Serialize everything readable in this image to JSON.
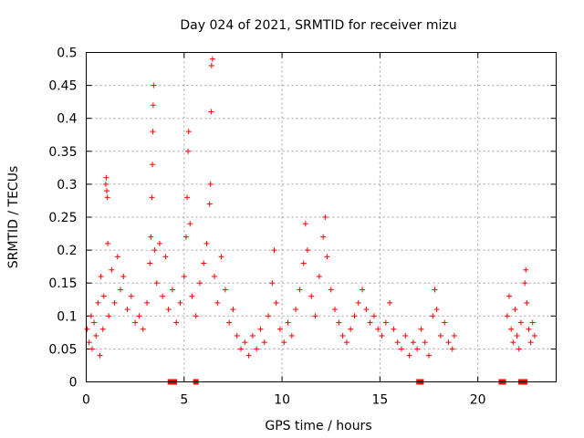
{
  "chart_data": {
    "type": "scatter",
    "title": "Day 024 of 2021, SRMTID for receiver mizu",
    "xlabel": "GPS time / hours",
    "ylabel": "SRMTID / TECUs",
    "xlim": [
      0,
      24
    ],
    "ylim": [
      0,
      0.5
    ],
    "x_ticks": [
      0,
      5,
      10,
      15,
      20
    ],
    "y_ticks": [
      0,
      0.05,
      0.1,
      0.15,
      0.2,
      0.25,
      0.3,
      0.35,
      0.4,
      0.45,
      0.5
    ],
    "x_tick_labels": [
      "0",
      "5",
      "10",
      "15",
      "20"
    ],
    "y_tick_labels": [
      "0",
      "0.05",
      "0.1",
      "0.15",
      "0.2",
      "0.25",
      "0.3",
      "0.35",
      "0.4",
      "0.45",
      "0.5"
    ],
    "grid": true,
    "marker": "+",
    "color": "#ff0000",
    "series": [
      {
        "name": "SRMTID",
        "points": [
          [
            0.05,
            0.08
          ],
          [
            0.15,
            0.06
          ],
          [
            0.25,
            0.1
          ],
          [
            0.3,
            0.05
          ],
          [
            0.4,
            0.09
          ],
          [
            0.5,
            0.07
          ],
          [
            0.6,
            0.12
          ],
          [
            0.7,
            0.04
          ],
          [
            0.75,
            0.16
          ],
          [
            0.85,
            0.08
          ],
          [
            0.9,
            0.13
          ],
          [
            1.0,
            0.3
          ],
          [
            1.02,
            0.31
          ],
          [
            1.05,
            0.29
          ],
          [
            1.08,
            0.28
          ],
          [
            1.1,
            0.21
          ],
          [
            1.15,
            0.1
          ],
          [
            1.3,
            0.17
          ],
          [
            1.45,
            0.12
          ],
          [
            1.6,
            0.19
          ],
          [
            1.75,
            0.14
          ],
          [
            1.9,
            0.16
          ],
          [
            2.1,
            0.11
          ],
          [
            2.3,
            0.13
          ],
          [
            2.5,
            0.09
          ],
          [
            2.7,
            0.1
          ],
          [
            2.9,
            0.08
          ],
          [
            3.1,
            0.12
          ],
          [
            3.25,
            0.18
          ],
          [
            3.3,
            0.22
          ],
          [
            3.35,
            0.28
          ],
          [
            3.38,
            0.33
          ],
          [
            3.4,
            0.38
          ],
          [
            3.42,
            0.42
          ],
          [
            3.44,
            0.45
          ],
          [
            3.5,
            0.2
          ],
          [
            3.6,
            0.15
          ],
          [
            3.75,
            0.21
          ],
          [
            3.9,
            0.13
          ],
          [
            4.05,
            0.19
          ],
          [
            4.2,
            0.11
          ],
          [
            4.4,
            0.14
          ],
          [
            4.6,
            0.09
          ],
          [
            4.8,
            0.12
          ],
          [
            5.0,
            0.16
          ],
          [
            5.1,
            0.22
          ],
          [
            5.15,
            0.28
          ],
          [
            5.2,
            0.35
          ],
          [
            5.23,
            0.38
          ],
          [
            5.3,
            0.24
          ],
          [
            5.4,
            0.13
          ],
          [
            5.6,
            0.1
          ],
          [
            5.8,
            0.15
          ],
          [
            6.0,
            0.18
          ],
          [
            6.15,
            0.21
          ],
          [
            6.3,
            0.27
          ],
          [
            6.35,
            0.3
          ],
          [
            6.38,
            0.41
          ],
          [
            6.4,
            0.48
          ],
          [
            6.45,
            0.49
          ],
          [
            6.55,
            0.16
          ],
          [
            6.7,
            0.12
          ],
          [
            6.9,
            0.19
          ],
          [
            7.1,
            0.14
          ],
          [
            7.3,
            0.09
          ],
          [
            7.5,
            0.11
          ],
          [
            7.7,
            0.07
          ],
          [
            7.9,
            0.05
          ],
          [
            8.1,
            0.06
          ],
          [
            8.3,
            0.04
          ],
          [
            8.5,
            0.07
          ],
          [
            8.7,
            0.05
          ],
          [
            8.9,
            0.08
          ],
          [
            9.1,
            0.06
          ],
          [
            9.3,
            0.1
          ],
          [
            9.5,
            0.15
          ],
          [
            9.6,
            0.2
          ],
          [
            9.7,
            0.12
          ],
          [
            9.9,
            0.08
          ],
          [
            10.1,
            0.06
          ],
          [
            10.3,
            0.09
          ],
          [
            10.5,
            0.07
          ],
          [
            10.7,
            0.11
          ],
          [
            10.9,
            0.14
          ],
          [
            11.1,
            0.18
          ],
          [
            11.2,
            0.24
          ],
          [
            11.3,
            0.2
          ],
          [
            11.5,
            0.13
          ],
          [
            11.7,
            0.1
          ],
          [
            11.9,
            0.16
          ],
          [
            12.1,
            0.22
          ],
          [
            12.2,
            0.25
          ],
          [
            12.3,
            0.19
          ],
          [
            12.5,
            0.14
          ],
          [
            12.7,
            0.11
          ],
          [
            12.9,
            0.09
          ],
          [
            13.1,
            0.07
          ],
          [
            13.3,
            0.06
          ],
          [
            13.5,
            0.08
          ],
          [
            13.7,
            0.1
          ],
          [
            13.9,
            0.12
          ],
          [
            14.1,
            0.14
          ],
          [
            14.3,
            0.11
          ],
          [
            14.5,
            0.09
          ],
          [
            14.7,
            0.1
          ],
          [
            14.9,
            0.08
          ],
          [
            15.1,
            0.07
          ],
          [
            15.3,
            0.09
          ],
          [
            15.5,
            0.12
          ],
          [
            15.7,
            0.08
          ],
          [
            15.9,
            0.06
          ],
          [
            16.1,
            0.05
          ],
          [
            16.3,
            0.07
          ],
          [
            16.5,
            0.04
          ],
          [
            16.7,
            0.06
          ],
          [
            16.9,
            0.05
          ],
          [
            17.1,
            0.08
          ],
          [
            17.3,
            0.06
          ],
          [
            17.5,
            0.04
          ],
          [
            17.7,
            0.1
          ],
          [
            17.8,
            0.14
          ],
          [
            17.9,
            0.11
          ],
          [
            18.1,
            0.07
          ],
          [
            18.3,
            0.09
          ],
          [
            18.5,
            0.06
          ],
          [
            18.7,
            0.05
          ],
          [
            18.8,
            0.07
          ],
          [
            21.5,
            0.1
          ],
          [
            21.6,
            0.13
          ],
          [
            21.7,
            0.08
          ],
          [
            21.8,
            0.06
          ],
          [
            21.9,
            0.11
          ],
          [
            22.0,
            0.07
          ],
          [
            22.1,
            0.05
          ],
          [
            22.2,
            0.09
          ],
          [
            22.4,
            0.15
          ],
          [
            22.45,
            0.17
          ],
          [
            22.5,
            0.12
          ],
          [
            22.6,
            0.08
          ],
          [
            22.7,
            0.06
          ],
          [
            22.8,
            0.09
          ],
          [
            22.9,
            0.07
          ]
        ]
      }
    ],
    "baseline_markers": [
      4.3,
      4.5,
      5.6,
      17.0,
      17.1,
      21.2,
      21.3,
      22.2,
      22.3,
      22.4
    ]
  }
}
